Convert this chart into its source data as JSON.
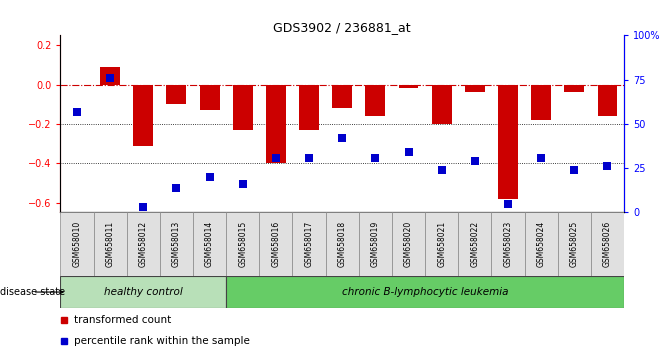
{
  "title": "GDS3902 / 236881_at",
  "samples": [
    "GSM658010",
    "GSM658011",
    "GSM658012",
    "GSM658013",
    "GSM658014",
    "GSM658015",
    "GSM658016",
    "GSM658017",
    "GSM658018",
    "GSM658019",
    "GSM658020",
    "GSM658021",
    "GSM658022",
    "GSM658023",
    "GSM658024",
    "GSM658025",
    "GSM658026"
  ],
  "bar_values": [
    0.0,
    0.09,
    -0.31,
    -0.1,
    -0.13,
    -0.23,
    -0.4,
    -0.23,
    -0.12,
    -0.16,
    -0.02,
    -0.2,
    -0.04,
    -0.58,
    -0.18,
    -0.04,
    -0.16
  ],
  "dot_percentiles": [
    57,
    76,
    3,
    14,
    20,
    16,
    31,
    31,
    42,
    31,
    34,
    24,
    29,
    5,
    31,
    24,
    26
  ],
  "bar_color": "#cc0000",
  "dot_color": "#0000cc",
  "ylim_left": [
    -0.65,
    0.25
  ],
  "ylim_right": [
    0,
    100
  ],
  "yticks_left": [
    -0.6,
    -0.4,
    -0.2,
    0.0,
    0.2
  ],
  "yticks_right": [
    0,
    25,
    50,
    75,
    100
  ],
  "ytick_right_labels": [
    "0",
    "25",
    "50",
    "75",
    "100%"
  ],
  "dotted_lines": [
    -0.2,
    -0.4
  ],
  "healthy_count": 5,
  "healthy_label": "healthy control",
  "disease_label": "chronic B-lymphocytic leukemia",
  "disease_state_label": "disease state",
  "legend_bar_label": "transformed count",
  "legend_dot_label": "percentile rank within the sample",
  "healthy_color": "#b8e0b8",
  "disease_color": "#66cc66",
  "bar_width": 0.6,
  "dot_size": 28
}
